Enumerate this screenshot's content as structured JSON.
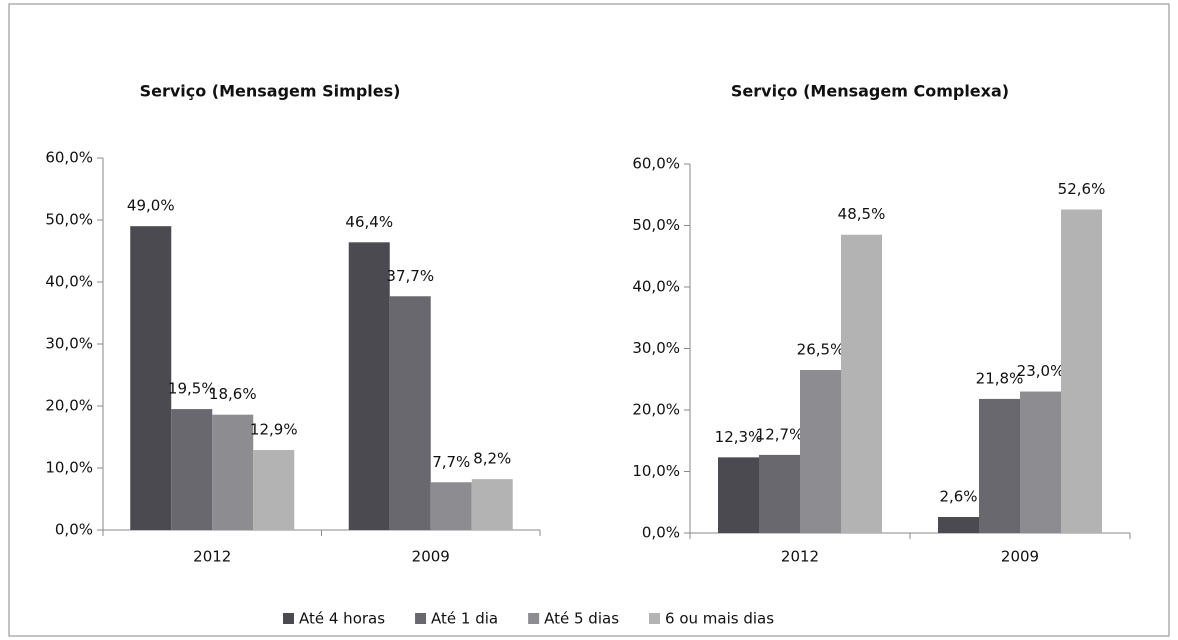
{
  "chart_data": [
    {
      "type": "bar",
      "title": "Serviço (Mensagem Simples)",
      "categories": [
        "2012",
        "2009"
      ],
      "series": [
        {
          "name": "Até 4 horas",
          "color": "#4b4a50",
          "values": [
            49.0,
            46.4
          ],
          "value_labels": [
            "49,0%",
            "46,4%"
          ]
        },
        {
          "name": "Até 1 dia",
          "color": "#69686e",
          "values": [
            19.5,
            37.7
          ],
          "value_labels": [
            "19,5%",
            "37,7%"
          ]
        },
        {
          "name": "Até 5 dias",
          "color": "#8d8c91",
          "values": [
            18.6,
            7.7
          ],
          "value_labels": [
            "18,6%",
            "7,7%"
          ]
        },
        {
          "name": "6 ou mais dias",
          "color": "#b3b3b3",
          "values": [
            12.9,
            8.2
          ],
          "value_labels": [
            "12,9%",
            "8,2%"
          ]
        }
      ],
      "ylim": [
        0,
        60
      ],
      "yticks": [
        {
          "value": 0,
          "label": "0,0%"
        },
        {
          "value": 10,
          "label": "10,0%"
        },
        {
          "value": 20,
          "label": "20,0%"
        },
        {
          "value": 30,
          "label": "30,0%"
        },
        {
          "value": 40,
          "label": "40,0%"
        },
        {
          "value": 50,
          "label": "50,0%"
        },
        {
          "value": 60,
          "label": "60,0%"
        }
      ]
    },
    {
      "type": "bar",
      "title": "Serviço (Mensagem Complexa)",
      "categories": [
        "2012",
        "2009"
      ],
      "series": [
        {
          "color": "#4b4a50",
          "values": [
            12.3,
            2.6
          ],
          "value_labels": [
            "12,3%",
            "2,6%"
          ]
        },
        {
          "color": "#69686e",
          "values": [
            12.7,
            21.8
          ],
          "value_labels": [
            "12,7%",
            "21,8%"
          ]
        },
        {
          "color": "#8d8c91",
          "values": [
            26.5,
            23.0
          ],
          "value_labels": [
            "26,5%",
            "23,0%"
          ]
        },
        {
          "color": "#b3b3b3",
          "values": [
            48.5,
            52.6
          ],
          "value_labels": [
            "48,5%",
            "52,6%"
          ]
        }
      ],
      "ylim": [
        0,
        60
      ],
      "yticks": [
        {
          "value": 0,
          "label": "0,0%"
        },
        {
          "value": 10,
          "label": "10,0%"
        },
        {
          "value": 20,
          "label": "20,0%"
        },
        {
          "value": 30,
          "label": "30,0%"
        },
        {
          "value": 40,
          "label": "40,0%"
        },
        {
          "value": 50,
          "label": "50,0%"
        },
        {
          "value": 60,
          "label": "60,0%"
        }
      ]
    }
  ]
}
